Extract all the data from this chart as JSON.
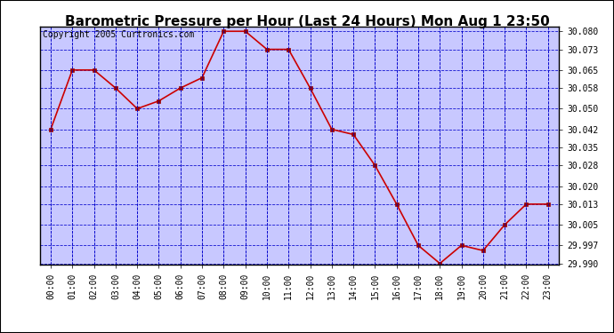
{
  "title": "Barometric Pressure per Hour (Last 24 Hours) Mon Aug 1 23:50",
  "copyright": "Copyright 2005 Curtronics.com",
  "x_labels": [
    "00:00",
    "01:00",
    "02:00",
    "03:00",
    "04:00",
    "05:00",
    "06:00",
    "07:00",
    "08:00",
    "09:00",
    "10:00",
    "11:00",
    "12:00",
    "13:00",
    "14:00",
    "15:00",
    "16:00",
    "17:00",
    "18:00",
    "19:00",
    "20:00",
    "21:00",
    "22:00",
    "23:00"
  ],
  "y_values": [
    30.042,
    30.065,
    30.065,
    30.058,
    30.05,
    30.053,
    30.058,
    30.062,
    30.08,
    30.08,
    30.073,
    30.073,
    30.058,
    30.042,
    30.04,
    30.028,
    30.013,
    29.997,
    29.99,
    29.997,
    29.995,
    30.005,
    30.013,
    30.013
  ],
  "ylim_min": 29.9895,
  "ylim_max": 30.0818,
  "yticks": [
    30.08,
    30.073,
    30.065,
    30.058,
    30.05,
    30.042,
    30.035,
    30.028,
    30.02,
    30.013,
    30.005,
    29.997,
    29.99
  ],
  "line_color": "#cc0000",
  "marker_color": "#990000",
  "plot_bg_color": "#c8c8ff",
  "grid_color": "#0000cc",
  "title_bg_color": "#ffffff",
  "border_color": "#000000",
  "title_fontsize": 11,
  "copyright_fontsize": 7,
  "tick_fontsize": 7,
  "x_tick_fontsize": 7
}
